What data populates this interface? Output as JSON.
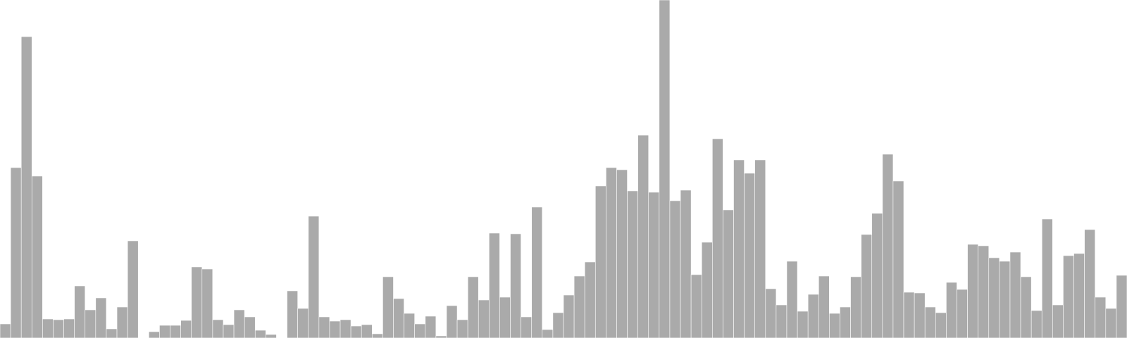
{
  "chart_data": {
    "type": "bar",
    "title": "",
    "xlabel": "",
    "ylabel": "",
    "ylim": [
      0,
      480
    ],
    "grid": false,
    "legend": "none",
    "colors": {
      "bar": "#aaaaaa",
      "edge": "#ffffff",
      "background": "#ffffff"
    },
    "values": [
      20,
      242,
      428,
      230,
      27,
      26,
      27,
      74,
      40,
      57,
      13,
      44,
      138,
      0,
      9,
      18,
      18,
      25,
      101,
      98,
      26,
      19,
      40,
      30,
      11,
      5,
      0,
      67,
      42,
      173,
      30,
      24,
      26,
      17,
      19,
      6,
      87,
      56,
      35,
      20,
      31,
      3,
      46,
      26,
      87,
      54,
      149,
      58,
      148,
      30,
      186,
      12,
      36,
      61,
      88,
      108,
      216,
      242,
      239,
      209,
      288,
      207,
      480,
      195,
      210,
      90,
      136,
      283,
      182,
      253,
      234,
      253,
      70,
      47,
      109,
      38,
      62,
      88,
      35,
      44,
      87,
      147,
      177,
      261,
      223,
      65,
      64,
      44,
      36,
      79,
      69,
      133,
      131,
      114,
      109,
      122,
      87,
      39,
      169,
      47,
      117,
      120,
      154,
      58,
      42,
      89
    ]
  }
}
